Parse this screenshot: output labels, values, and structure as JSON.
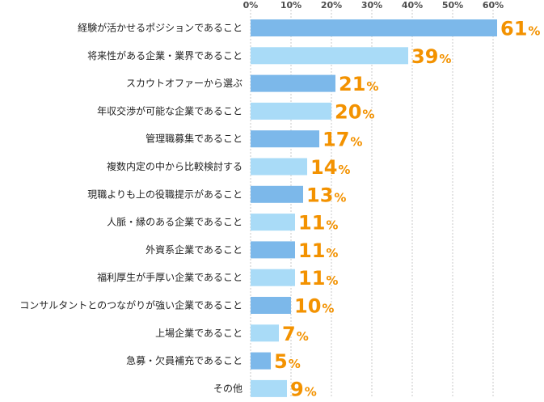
{
  "chart_data": {
    "type": "bar",
    "orientation": "horizontal",
    "categories": [
      "経験が活かせるポジションであること",
      "将来性がある企業・業界であること",
      "スカウトオファーから選ぶ",
      "年収交渉が可能な企業であること",
      "管理職募集であること",
      "複数内定の中から比較検討する",
      "現職よりも上の役職提示があること",
      "人脈・縁のある企業であること",
      "外資系企業であること",
      "福利厚生が手厚い企業であること",
      "コンサルタントとのつながりが強い企業であること",
      "上場企業であること",
      "急募・欠員補充であること",
      "その他"
    ],
    "values": [
      61,
      39,
      21,
      20,
      17,
      14,
      13,
      11,
      11,
      11,
      10,
      7,
      5,
      9
    ],
    "value_suffix": "%",
    "xticks": [
      "0%",
      "10%",
      "20%",
      "30%",
      "40%",
      "50%",
      "60%"
    ],
    "xlim": [
      0,
      60
    ],
    "grid": true,
    "colors": {
      "bar_dark": "#7cb8ea",
      "bar_light": "#a9dbf7",
      "value_label": "#f39200",
      "grid": "#c8c8c8"
    }
  }
}
